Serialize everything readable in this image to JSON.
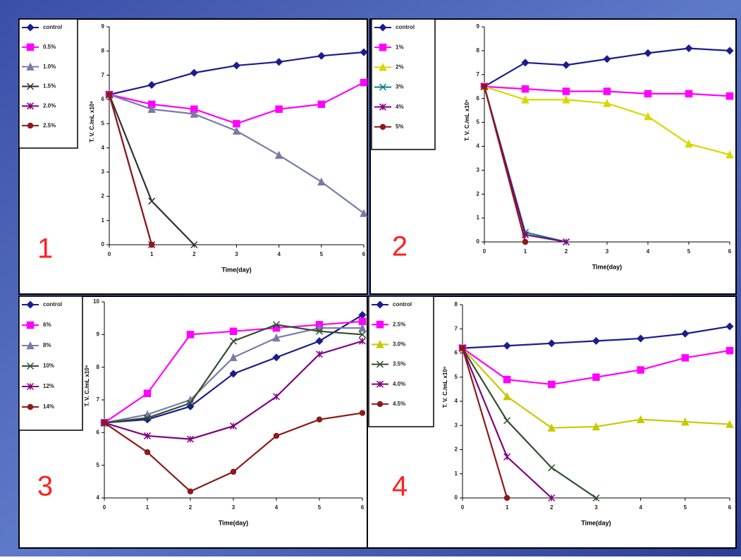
{
  "chart_data": [
    {
      "type": "line",
      "panel_label": "1",
      "x_label": "Time(day)",
      "y_label": "T. V. C./mL x10⁶",
      "x": [
        0,
        1,
        2,
        3,
        4,
        5,
        6
      ],
      "xlim": [
        0,
        6
      ],
      "xticks": [
        0,
        1,
        2,
        3,
        4,
        5,
        6
      ],
      "ylim": [
        0,
        9
      ],
      "yticks": [
        0,
        1,
        2,
        3,
        4,
        5,
        6,
        7,
        8,
        9
      ],
      "series": [
        {
          "name": "control",
          "color": "#1c1c8f",
          "values": [
            6.2,
            6.6,
            7.1,
            7.4,
            7.55,
            7.8,
            7.95
          ]
        },
        {
          "name": "0.5%",
          "color": "#ff00ff",
          "values": [
            6.2,
            5.8,
            5.6,
            5.0,
            5.6,
            5.8,
            6.7
          ]
        },
        {
          "name": "1.0%",
          "color": "#7a7aa8",
          "values": [
            6.2,
            5.6,
            5.4,
            4.7,
            3.7,
            2.6,
            1.3
          ]
        },
        {
          "name": "1.5%",
          "color": "#303030",
          "values": [
            6.2,
            1.8,
            0,
            null,
            null,
            null,
            null
          ]
        },
        {
          "name": "2.0%",
          "color": "#800080",
          "values": [
            6.2,
            0,
            null,
            null,
            null,
            null,
            null
          ]
        },
        {
          "name": "2.5%",
          "color": "#8b1a1a",
          "values": [
            6.2,
            0,
            null,
            null,
            null,
            null,
            null
          ]
        }
      ]
    },
    {
      "type": "line",
      "panel_label": "2",
      "x_label": "Time(day)",
      "y_label": "T. V. C./mL x10⁶",
      "x": [
        0,
        1,
        2,
        3,
        4,
        5,
        6
      ],
      "xlim": [
        0,
        6
      ],
      "xticks": [
        0,
        1,
        2,
        3,
        4,
        5,
        6
      ],
      "ylim": [
        0,
        9
      ],
      "yticks": [
        0,
        1,
        2,
        3,
        4,
        5,
        6,
        7,
        8,
        9
      ],
      "series": [
        {
          "name": "control",
          "color": "#1c1c8f",
          "values": [
            6.5,
            7.5,
            7.4,
            7.65,
            7.9,
            8.1,
            8.0
          ]
        },
        {
          "name": "1%",
          "color": "#ff00ff",
          "values": [
            6.5,
            6.4,
            6.3,
            6.3,
            6.2,
            6.2,
            6.1
          ]
        },
        {
          "name": "2%",
          "color": "#d8d800",
          "values": [
            6.5,
            5.95,
            5.95,
            5.8,
            5.25,
            4.1,
            3.65
          ]
        },
        {
          "name": "3%",
          "color": "#008080",
          "values": [
            6.5,
            0.4,
            0,
            null,
            null,
            null,
            null
          ]
        },
        {
          "name": "4%",
          "color": "#800080",
          "values": [
            6.5,
            0.3,
            0,
            null,
            null,
            null,
            null
          ]
        },
        {
          "name": "5%",
          "color": "#8b1a1a",
          "values": [
            6.5,
            0,
            null,
            null,
            null,
            null,
            null
          ]
        }
      ]
    },
    {
      "type": "line",
      "panel_label": "3",
      "x_label": "Time(day)",
      "y_label": "T. V. C./mL x10⁶",
      "x": [
        0,
        1,
        2,
        3,
        4,
        5,
        6
      ],
      "xlim": [
        0,
        6
      ],
      "xticks": [
        0,
        1,
        2,
        3,
        4,
        5,
        6
      ],
      "ylim": [
        4,
        10
      ],
      "yticks": [
        4,
        5,
        6,
        7,
        8,
        9,
        10
      ],
      "series": [
        {
          "name": "control",
          "color": "#1c1c8f",
          "values": [
            6.3,
            6.4,
            6.8,
            7.8,
            8.3,
            8.8,
            9.6
          ]
        },
        {
          "name": "6%",
          "color": "#ff00ff",
          "values": [
            6.3,
            7.2,
            9.0,
            9.1,
            9.2,
            9.3,
            9.4
          ]
        },
        {
          "name": "8%",
          "color": "#7a7aa8",
          "values": [
            6.3,
            6.55,
            7.0,
            8.3,
            8.9,
            9.2,
            9.2
          ]
        },
        {
          "name": "10%",
          "color": "#2f4f2f",
          "values": [
            6.3,
            6.45,
            6.9,
            8.8,
            9.3,
            9.1,
            9.0
          ]
        },
        {
          "name": "12%",
          "color": "#800080",
          "values": [
            6.3,
            5.9,
            5.8,
            6.2,
            7.1,
            8.4,
            8.8
          ]
        },
        {
          "name": "14%",
          "color": "#8b1a1a",
          "values": [
            6.3,
            5.4,
            4.2,
            4.8,
            5.9,
            6.4,
            6.6
          ]
        }
      ]
    },
    {
      "type": "line",
      "panel_label": "4",
      "x_label": "Time(day)",
      "y_label": "T. V. C./mL x10⁶",
      "x": [
        0,
        1,
        2,
        3,
        4,
        5,
        6
      ],
      "xlim": [
        0,
        6
      ],
      "xticks": [
        0,
        1,
        2,
        3,
        4,
        5,
        6
      ],
      "ylim": [
        0,
        8
      ],
      "yticks": [
        0,
        1,
        2,
        3,
        4,
        5,
        6,
        7,
        8
      ],
      "series": [
        {
          "name": "control",
          "color": "#1c1c8f",
          "values": [
            6.2,
            6.3,
            6.4,
            6.5,
            6.6,
            6.8,
            7.1
          ]
        },
        {
          "name": "2.5%",
          "color": "#ff00ff",
          "values": [
            6.2,
            4.9,
            4.7,
            5.0,
            5.3,
            5.8,
            6.1
          ]
        },
        {
          "name": "3.0%",
          "color": "#c8c800",
          "values": [
            6.2,
            4.2,
            2.9,
            2.95,
            3.25,
            3.15,
            3.05
          ]
        },
        {
          "name": "3.5%",
          "color": "#2f4f2f",
          "values": [
            6.2,
            3.2,
            1.25,
            0,
            null,
            null,
            null
          ]
        },
        {
          "name": "4.0%",
          "color": "#800080",
          "values": [
            6.2,
            1.7,
            0,
            null,
            null,
            null,
            null
          ]
        },
        {
          "name": "4.5%",
          "color": "#8b1a1a",
          "values": [
            6.2,
            0,
            null,
            null,
            null,
            null,
            null
          ]
        }
      ]
    }
  ]
}
